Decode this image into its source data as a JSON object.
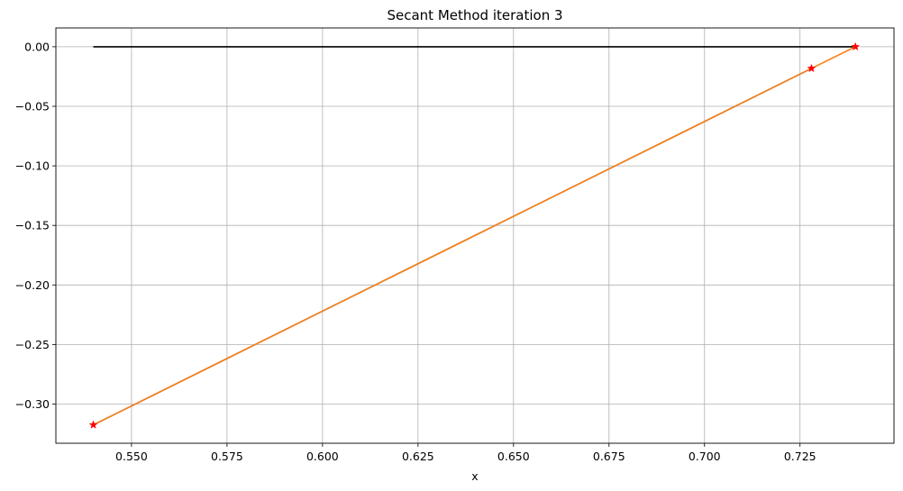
{
  "chart_data": {
    "type": "line",
    "title": "Secant Method iteration 3",
    "xlabel": "x",
    "ylabel": "",
    "xlim": [
      0.5302,
      0.7496
    ],
    "ylim": [
      -0.3329,
      0.0158
    ],
    "grid": true,
    "x_ticks": [
      0.55,
      0.575,
      0.6,
      0.625,
      0.65,
      0.675,
      0.7,
      0.725
    ],
    "x_tick_labels": [
      "0.550",
      "0.575",
      "0.600",
      "0.625",
      "0.650",
      "0.675",
      "0.700",
      "0.725"
    ],
    "y_ticks": [
      0.0,
      -0.05,
      -0.1,
      -0.15,
      -0.2,
      -0.25,
      -0.3
    ],
    "y_tick_labels": [
      "0.00",
      "−0.05",
      "−0.10",
      "−0.15",
      "−0.20",
      "−0.25",
      "−0.30"
    ],
    "series": [
      {
        "color": "#000000",
        "style": "line",
        "x": [
          0.54,
          0.7395
        ],
        "y": [
          0.0,
          0.0
        ]
      },
      {
        "color": "#1f77b4",
        "style": "line",
        "x": [
          0.54,
          0.728
        ],
        "y": [
          -0.3175,
          -0.0182
        ]
      },
      {
        "color": "#ff7f0e",
        "style": "line",
        "x": [
          0.54,
          0.728,
          0.7395
        ],
        "y": [
          -0.3175,
          -0.0182,
          0.0
        ]
      },
      {
        "color": "#ff0000",
        "style": "marker",
        "marker": "star",
        "x": [
          0.54,
          0.728,
          0.7395
        ],
        "y": [
          -0.3175,
          -0.0182,
          0.0
        ]
      }
    ]
  }
}
